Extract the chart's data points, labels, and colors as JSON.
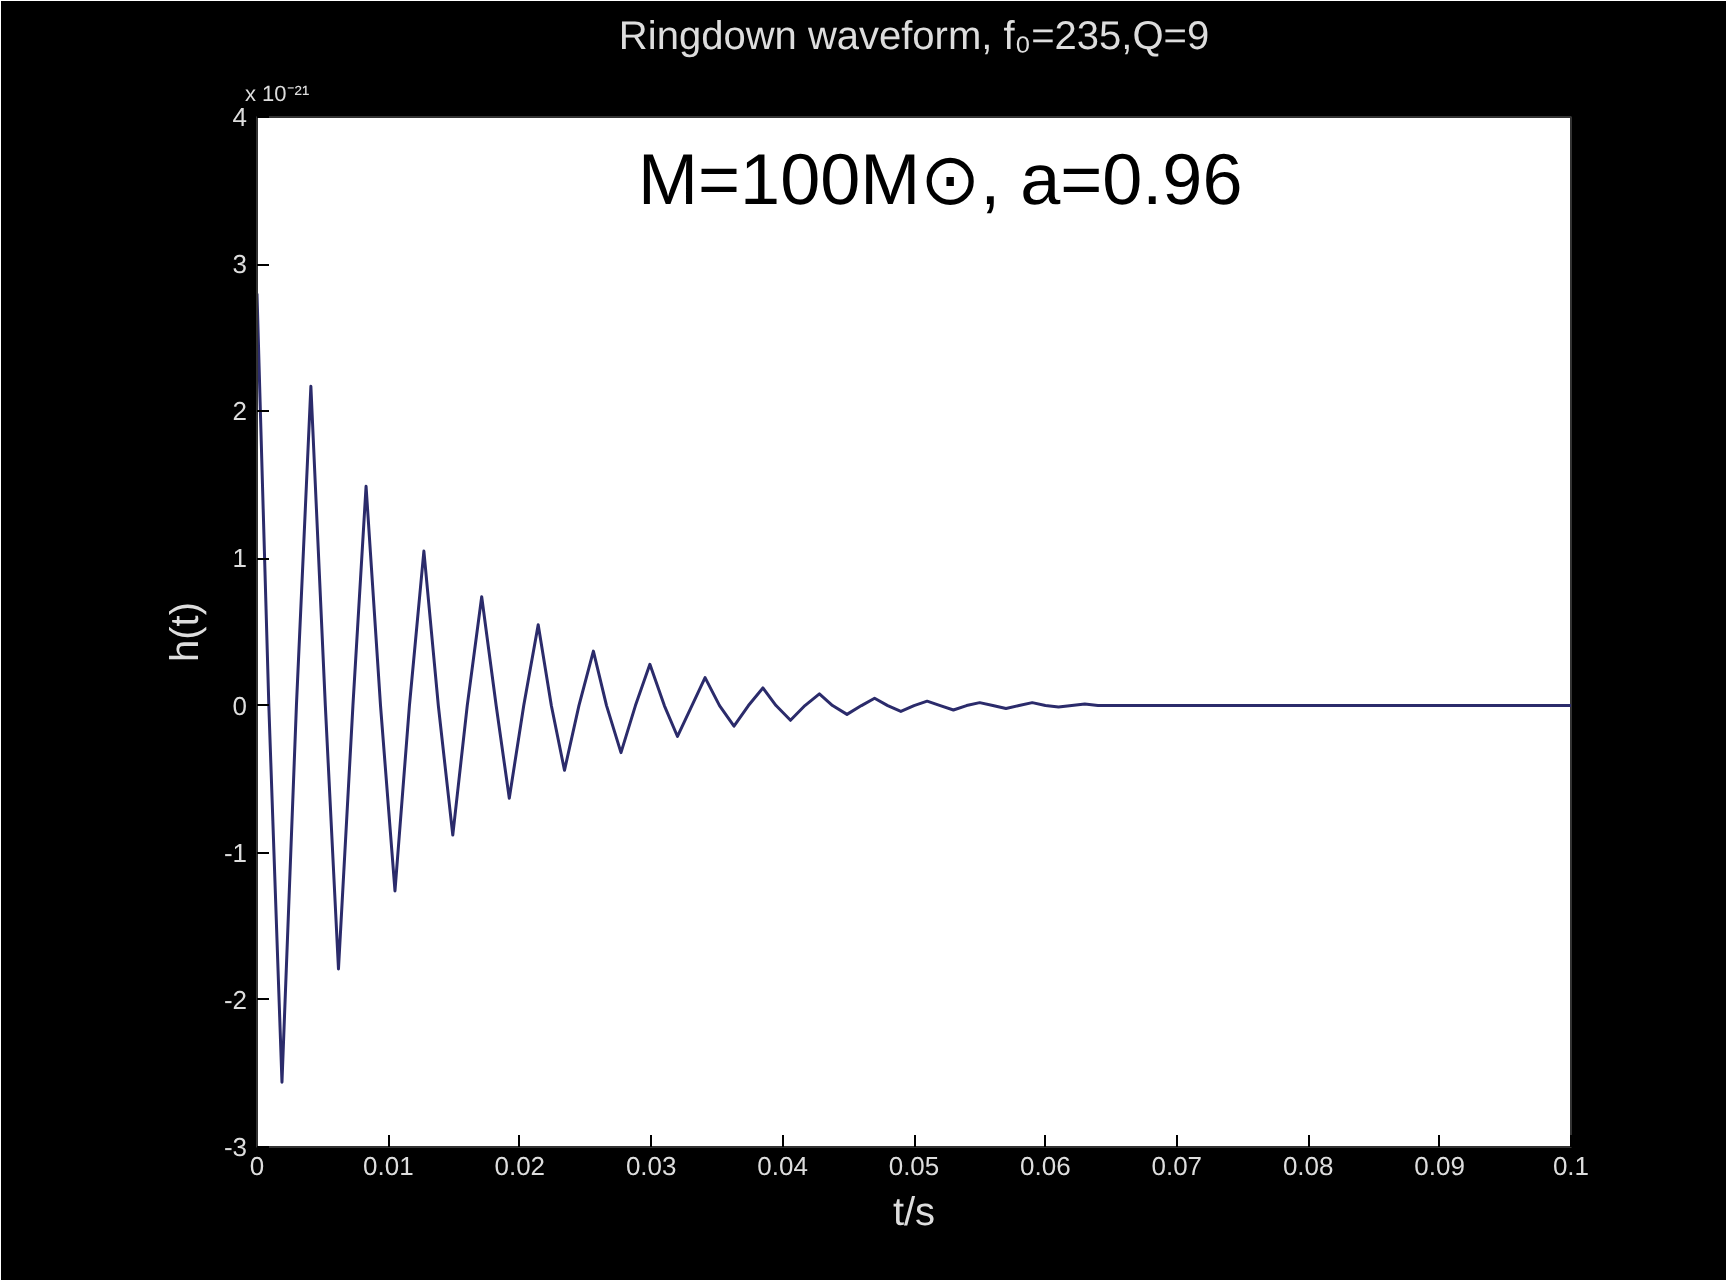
{
  "chart_data": {
    "type": "line",
    "title": "Ringdown waveform, f₀=235,Q=9",
    "xlabel": "t/s",
    "ylabel": "h(t)",
    "annotations": [
      "x 10⁻²¹",
      "M=100M⊙, a=0.96"
    ],
    "xlim": [
      0,
      0.1
    ],
    "xticks": [
      0,
      0.01,
      0.02,
      0.03,
      0.04,
      0.05,
      0.06,
      0.07,
      0.08,
      0.09,
      0.1
    ],
    "ylim": [
      -3,
      4
    ],
    "yticks": [
      -3,
      -2,
      -1,
      0,
      1,
      2,
      3,
      4
    ],
    "grid": false,
    "series": [
      {
        "color": "#2b2b6b",
        "x": [
          0,
          0.0009,
          0.0019,
          0.003,
          0.0041,
          0.0052,
          0.0062,
          0.0073,
          0.0083,
          0.0094,
          0.0105,
          0.0116,
          0.0127,
          0.0138,
          0.0149,
          0.016,
          0.0171,
          0.0182,
          0.0192,
          0.0203,
          0.0214,
          0.0224,
          0.0234,
          0.0245,
          0.0256,
          0.0266,
          0.0277,
          0.0288,
          0.0299,
          0.031,
          0.032,
          0.0331,
          0.0341,
          0.0352,
          0.0363,
          0.0374,
          0.0385,
          0.0395,
          0.0406,
          0.0417,
          0.0428,
          0.0438,
          0.0449,
          0.046,
          0.047,
          0.048,
          0.049,
          0.05,
          0.051,
          0.052,
          0.053,
          0.054,
          0.055,
          0.056,
          0.057,
          0.058,
          0.059,
          0.06,
          0.061,
          0.062,
          0.063,
          0.064,
          0.073,
          0.1
        ],
        "values": [
          2.8,
          0,
          -2.56,
          0,
          2.17,
          0,
          -1.79,
          0,
          1.49,
          0,
          -1.26,
          0,
          1.05,
          0,
          -0.88,
          0,
          0.74,
          0,
          -0.63,
          0,
          0.55,
          0,
          -0.44,
          0,
          0.37,
          0,
          -0.32,
          0,
          0.28,
          0,
          -0.21,
          0,
          0.19,
          0,
          -0.14,
          0,
          0.12,
          0,
          -0.1,
          0,
          0.08,
          0,
          -0.06,
          0,
          0.05,
          0,
          -0.04,
          0,
          0.03,
          0,
          -0.03,
          0,
          0.02,
          0,
          -0.02,
          0,
          0.02,
          0,
          -0.01,
          0,
          0.01,
          0,
          0,
          0
        ]
      }
    ]
  }
}
